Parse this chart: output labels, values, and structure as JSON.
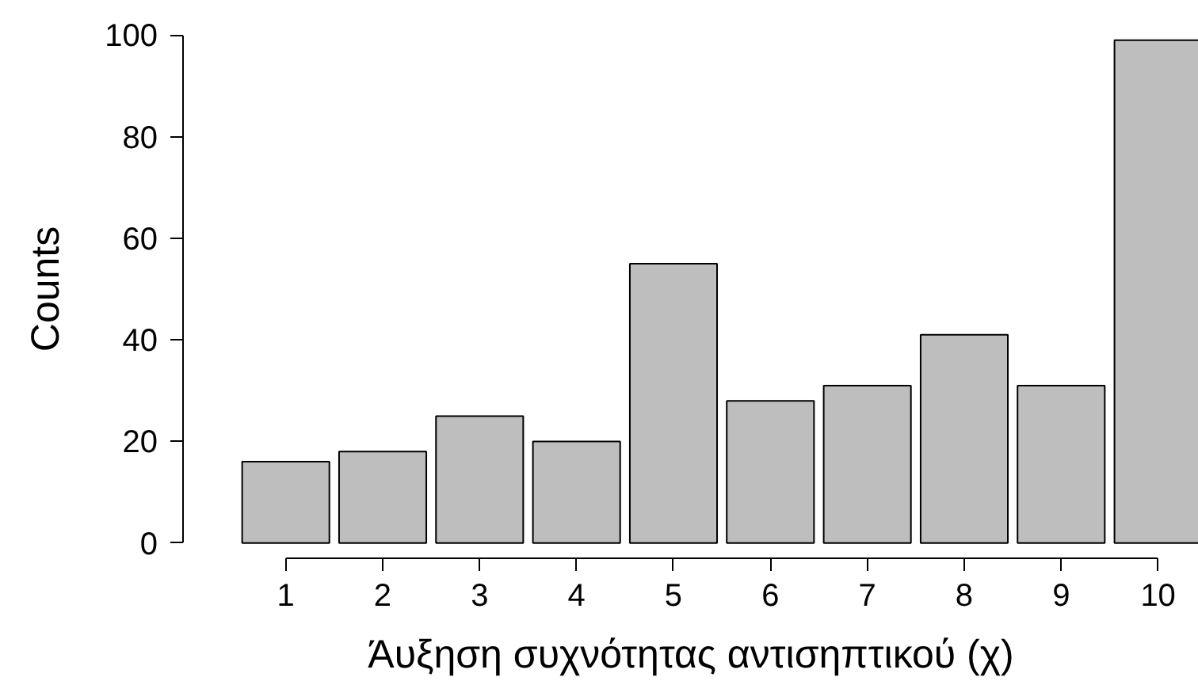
{
  "chart_data": {
    "type": "bar",
    "categories": [
      "1",
      "2",
      "3",
      "4",
      "5",
      "6",
      "7",
      "8",
      "9",
      "10"
    ],
    "values": [
      16,
      18,
      25,
      20,
      55,
      28,
      31,
      41,
      31,
      99
    ],
    "color": "#bebebe",
    "ylim": [
      0,
      100
    ],
    "yticks": [
      0,
      20,
      40,
      60,
      80,
      100
    ],
    "xlabel": "Άυξηση συχνότητας αντισηπτικού (χ)",
    "ylabel": "Counts",
    "grid": false
  }
}
